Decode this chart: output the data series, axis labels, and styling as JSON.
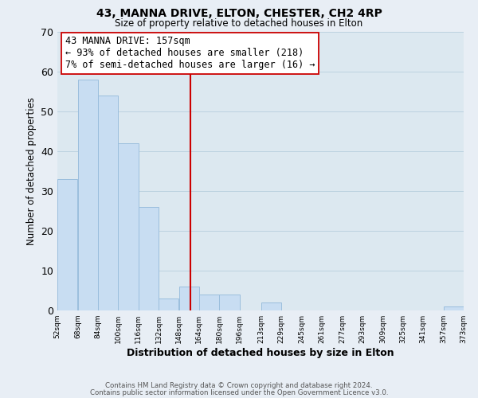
{
  "title": "43, MANNA DRIVE, ELTON, CHESTER, CH2 4RP",
  "subtitle": "Size of property relative to detached houses in Elton",
  "xlabel": "Distribution of detached houses by size in Elton",
  "ylabel": "Number of detached properties",
  "bar_color": "#c8ddf2",
  "bar_edge_color": "#9bbedd",
  "vline_color": "#cc0000",
  "bin_edges": [
    52,
    68,
    84,
    100,
    116,
    132,
    148,
    164,
    180,
    196,
    213,
    229,
    245,
    261,
    277,
    293,
    309,
    325,
    341,
    357,
    373
  ],
  "bin_labels": [
    "52sqm",
    "68sqm",
    "84sqm",
    "100sqm",
    "116sqm",
    "132sqm",
    "148sqm",
    "164sqm",
    "180sqm",
    "196sqm",
    "213sqm",
    "229sqm",
    "245sqm",
    "261sqm",
    "277sqm",
    "293sqm",
    "309sqm",
    "325sqm",
    "341sqm",
    "357sqm",
    "373sqm"
  ],
  "counts": [
    33,
    58,
    54,
    42,
    26,
    3,
    6,
    4,
    4,
    0,
    2,
    0,
    0,
    0,
    0,
    0,
    0,
    0,
    0,
    1
  ],
  "ylim": [
    0,
    70
  ],
  "yticks": [
    0,
    10,
    20,
    30,
    40,
    50,
    60,
    70
  ],
  "annotation_line1": "43 MANNA DRIVE: 157sqm",
  "annotation_line2": "← 93% of detached houses are smaller (218)",
  "annotation_line3": "7% of semi-detached houses are larger (16) →",
  "vline_x_data": 157,
  "footer1": "Contains HM Land Registry data © Crown copyright and database right 2024.",
  "footer2": "Contains public sector information licensed under the Open Government Licence v3.0.",
  "background_color": "#e8eef5",
  "plot_bg_color": "#dce8f0"
}
